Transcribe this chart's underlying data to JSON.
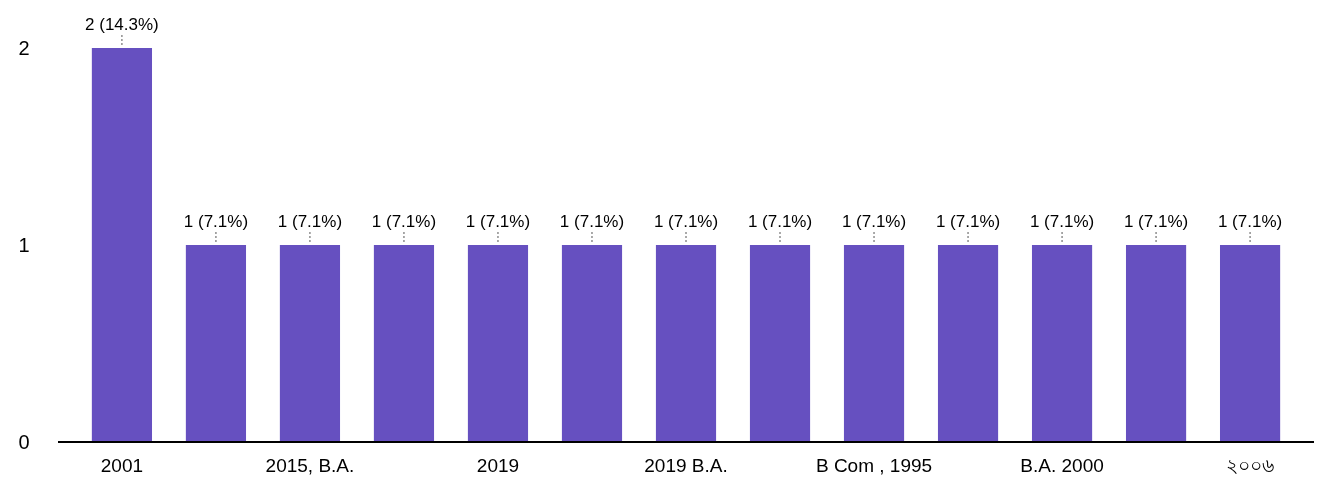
{
  "chart_data": {
    "type": "bar",
    "categories": [
      "2001",
      null,
      "2015, B.A.",
      null,
      "2019",
      null,
      "2019 B.A.",
      null,
      "B Com , 1995",
      null,
      "B.A. 2000",
      null,
      "২০০৬"
    ],
    "values": [
      2,
      1,
      1,
      1,
      1,
      1,
      1,
      1,
      1,
      1,
      1,
      1,
      1
    ],
    "value_labels": [
      "2 (14.3%)",
      "1 (7.1%)",
      "1 (7.1%)",
      "1 (7.1%)",
      "1 (7.1%)",
      "1 (7.1%)",
      "1 (7.1%)",
      "1 (7.1%)",
      "1 (7.1%)",
      "1 (7.1%)",
      "1 (7.1%)",
      "1 (7.1%)",
      "1 (7.1%)"
    ],
    "color": "#6650c0",
    "ylim": [
      0,
      2
    ],
    "yticks": [
      0,
      1,
      2
    ],
    "grid": false
  }
}
